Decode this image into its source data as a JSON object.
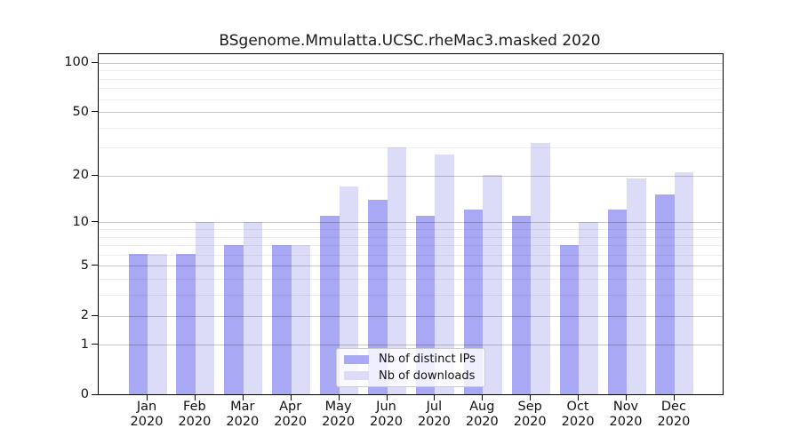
{
  "chart_data": {
    "type": "bar",
    "title": "BSgenome.Mmulatta.UCSC.rheMac3.masked 2020",
    "year": "2020",
    "categories": [
      "Jan",
      "Feb",
      "Mar",
      "Apr",
      "May",
      "Jun",
      "Jul",
      "Aug",
      "Sep",
      "Oct",
      "Nov",
      "Dec"
    ],
    "series": [
      {
        "name": "Nb of distinct IPs",
        "color": "#a8a8f5",
        "values": [
          6,
          6,
          7,
          7,
          11,
          14,
          11,
          12,
          11,
          7,
          12,
          15
        ]
      },
      {
        "name": "Nb of downloads",
        "color": "#dcdcf9",
        "values": [
          6,
          10,
          10,
          7,
          17,
          30,
          27,
          20,
          32,
          10,
          19,
          21
        ]
      }
    ],
    "y_axis": {
      "scale": "log1p",
      "tick_labels": [
        "0",
        "1",
        "2",
        "5",
        "10",
        "20",
        "50",
        "100"
      ],
      "tick_values": [
        0,
        1,
        2,
        5,
        10,
        20,
        50,
        100
      ],
      "minor_gridlines": [
        3,
        4,
        6,
        7,
        8,
        9,
        30,
        40,
        60,
        70,
        80,
        90
      ],
      "ylim": [
        0,
        114
      ],
      "grid": true
    },
    "legend": {
      "position": "inside-bottom-center",
      "entries": [
        "Nb of distinct IPs",
        "Nb of downloads"
      ]
    }
  }
}
